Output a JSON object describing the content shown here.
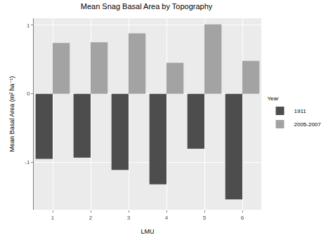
{
  "chart_data": {
    "type": "bar",
    "title": "Mean Snag Basal Area by Topography",
    "x_label": "LMU",
    "y_label": "Mean Basal Area (m² ha⁻¹)",
    "legend_title": "Year",
    "categories": [
      "1",
      "2",
      "3",
      "4",
      "5",
      "6"
    ],
    "series": [
      {
        "name": "1911",
        "color": "#4d4d4d",
        "values": [
          -0.95,
          -0.93,
          -1.11,
          -1.32,
          -0.8,
          -1.54
        ]
      },
      {
        "name": "2005-2007",
        "color": "#a3a3a3",
        "values": [
          0.74,
          0.75,
          0.88,
          0.45,
          1.01,
          0.48
        ]
      }
    ],
    "ylim": [
      -1.69,
      1.1
    ],
    "yticks": [
      -1,
      0,
      1
    ],
    "grid": true,
    "legend": "right"
  }
}
